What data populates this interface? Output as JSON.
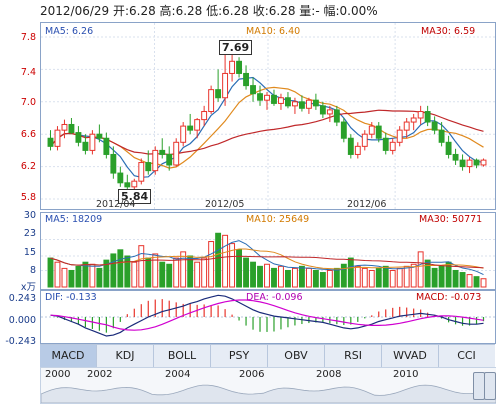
{
  "header": {
    "text": "2012/06/29 开:6.28 高:6.28 低:6.28 收:6.28 量:- 幅:0.00%"
  },
  "price_panel": {
    "ma5": "MA5: 6.26",
    "ma10": "MA10: 6.40",
    "ma30": "MA30: 6.59",
    "y_ticks": [
      "7.8",
      "7.4",
      "7.0",
      "6.6",
      "6.2",
      "5.8"
    ],
    "x_ticks": [
      "2012/04",
      "2012/05",
      "2012/06"
    ],
    "high_marker": "7.69",
    "low_marker": "5.84",
    "colors": {
      "up": "#e8342c",
      "down": "#2aa02a",
      "ma5": "#2a6db5",
      "ma10": "#e08a1e",
      "ma30": "#c0282a"
    }
  },
  "volume_panel": {
    "ma5": "MA5: 18209",
    "ma10": "MA10: 25649",
    "ma30": "MA30: 50771",
    "y_ticks": [
      "30",
      "23",
      "15",
      "8"
    ],
    "unit": "x万"
  },
  "macd_panel": {
    "dif": "DIF: -0.133",
    "dea": "DEA: -0.096",
    "macd": "MACD: -0.073",
    "y_ticks": [
      "0.243",
      "0.000",
      "-0.243"
    ]
  },
  "tabs": [
    "MACD",
    "KDJ",
    "BOLL",
    "PSY",
    "OBV",
    "RSI",
    "WVAD",
    "CCI"
  ],
  "timeline": {
    "years": [
      "2000",
      "2002",
      "2004",
      "2006",
      "2008",
      "2010"
    ]
  },
  "chart_data": {
    "type": "candlestick",
    "ohlc": [
      [
        6.55,
        6.65,
        6.4,
        6.45
      ],
      [
        6.45,
        6.7,
        6.4,
        6.65
      ],
      [
        6.65,
        6.78,
        6.55,
        6.72
      ],
      [
        6.72,
        6.8,
        6.6,
        6.62
      ],
      [
        6.62,
        6.7,
        6.45,
        6.5
      ],
      [
        6.5,
        6.6,
        6.35,
        6.4
      ],
      [
        6.4,
        6.65,
        6.35,
        6.6
      ],
      [
        6.6,
        6.72,
        6.5,
        6.55
      ],
      [
        6.55,
        6.62,
        6.3,
        6.35
      ],
      [
        6.35,
        6.45,
        6.05,
        6.12
      ],
      [
        6.12,
        6.2,
        5.95,
        6.0
      ],
      [
        6.0,
        6.1,
        5.88,
        5.95
      ],
      [
        5.95,
        6.05,
        5.84,
        6.02
      ],
      [
        6.02,
        6.3,
        5.98,
        6.25
      ],
      [
        6.25,
        6.4,
        6.1,
        6.15
      ],
      [
        6.15,
        6.45,
        6.1,
        6.4
      ],
      [
        6.4,
        6.55,
        6.3,
        6.35
      ],
      [
        6.35,
        6.45,
        6.15,
        6.22
      ],
      [
        6.22,
        6.55,
        6.2,
        6.5
      ],
      [
        6.5,
        6.75,
        6.45,
        6.7
      ],
      [
        6.7,
        6.85,
        6.6,
        6.65
      ],
      [
        6.65,
        6.8,
        6.55,
        6.78
      ],
      [
        6.78,
        6.95,
        6.7,
        6.88
      ],
      [
        6.88,
        7.2,
        6.85,
        7.15
      ],
      [
        7.15,
        7.4,
        7.0,
        7.05
      ],
      [
        7.05,
        7.69,
        6.95,
        7.35
      ],
      [
        7.35,
        7.6,
        7.25,
        7.5
      ],
      [
        7.5,
        7.55,
        7.3,
        7.35
      ],
      [
        7.35,
        7.45,
        7.15,
        7.2
      ],
      [
        7.2,
        7.3,
        7.0,
        7.1
      ],
      [
        7.1,
        7.2,
        6.95,
        7.02
      ],
      [
        7.02,
        7.12,
        6.9,
        7.08
      ],
      [
        7.08,
        7.15,
        6.95,
        6.98
      ],
      [
        6.98,
        7.1,
        6.9,
        7.05
      ],
      [
        7.05,
        7.12,
        6.92,
        6.95
      ],
      [
        6.95,
        7.05,
        6.85,
        7.0
      ],
      [
        7.0,
        7.08,
        6.88,
        6.92
      ],
      [
        6.92,
        7.05,
        6.85,
        7.02
      ],
      [
        7.02,
        7.1,
        6.9,
        6.95
      ],
      [
        6.95,
        7.0,
        6.8,
        6.85
      ],
      [
        6.85,
        6.95,
        6.75,
        6.9
      ],
      [
        6.9,
        6.95,
        6.7,
        6.75
      ],
      [
        6.75,
        6.8,
        6.5,
        6.55
      ],
      [
        6.55,
        6.6,
        6.3,
        6.35
      ],
      [
        6.35,
        6.5,
        6.3,
        6.45
      ],
      [
        6.45,
        6.65,
        6.4,
        6.6
      ],
      [
        6.6,
        6.75,
        6.55,
        6.7
      ],
      [
        6.7,
        6.75,
        6.5,
        6.55
      ],
      [
        6.55,
        6.62,
        6.35,
        6.4
      ],
      [
        6.4,
        6.55,
        6.35,
        6.5
      ],
      [
        6.5,
        6.7,
        6.45,
        6.65
      ],
      [
        6.65,
        6.8,
        6.55,
        6.75
      ],
      [
        6.75,
        6.85,
        6.65,
        6.8
      ],
      [
        6.8,
        6.95,
        6.72,
        6.88
      ],
      [
        6.88,
        6.95,
        6.7,
        6.75
      ],
      [
        6.75,
        6.82,
        6.6,
        6.65
      ],
      [
        6.65,
        6.75,
        6.45,
        6.5
      ],
      [
        6.5,
        6.58,
        6.3,
        6.35
      ],
      [
        6.35,
        6.42,
        6.22,
        6.28
      ],
      [
        6.28,
        6.35,
        6.15,
        6.2
      ],
      [
        6.2,
        6.32,
        6.12,
        6.28
      ],
      [
        6.28,
        6.3,
        6.18,
        6.22
      ],
      [
        6.22,
        6.3,
        6.2,
        6.28
      ]
    ],
    "volume": [
      14,
      12,
      9,
      8,
      10,
      12,
      11,
      9,
      13,
      16,
      18,
      15,
      12,
      20,
      14,
      16,
      12,
      11,
      14,
      17,
      15,
      12,
      14,
      22,
      26,
      25,
      21,
      18,
      14,
      12,
      10,
      11,
      9,
      10,
      8,
      9,
      10,
      9,
      8,
      7,
      8,
      9,
      11,
      14,
      10,
      9,
      8,
      9,
      10,
      8,
      9,
      10,
      11,
      17,
      13,
      9,
      10,
      12,
      8,
      7,
      6,
      5,
      4
    ],
    "macd": [
      0.02,
      0.01,
      -0.02,
      -0.05,
      -0.08,
      -0.12,
      -0.15,
      -0.18,
      -0.21,
      -0.2,
      -0.17,
      -0.12,
      -0.08,
      -0.04,
      0.0,
      0.03,
      0.06,
      0.08,
      0.1,
      0.12,
      0.15,
      0.17,
      0.2,
      0.22,
      0.24,
      0.23,
      0.2,
      0.16,
      0.12,
      0.08,
      0.05,
      0.03,
      0.01,
      0.0,
      -0.01,
      -0.02,
      -0.03,
      -0.04,
      -0.05,
      -0.06,
      -0.08,
      -0.1,
      -0.12,
      -0.13,
      -0.12,
      -0.1,
      -0.08,
      -0.05,
      -0.03,
      -0.01,
      0.01,
      0.02,
      0.03,
      0.04,
      0.03,
      0.02,
      0.0,
      -0.03,
      -0.05,
      -0.07,
      -0.08,
      -0.08,
      -0.07
    ],
    "ylim_price": [
      5.8,
      7.8
    ],
    "ylim_volume": [
      0,
      30
    ],
    "ylim_macd": [
      -0.243,
      0.243
    ]
  }
}
